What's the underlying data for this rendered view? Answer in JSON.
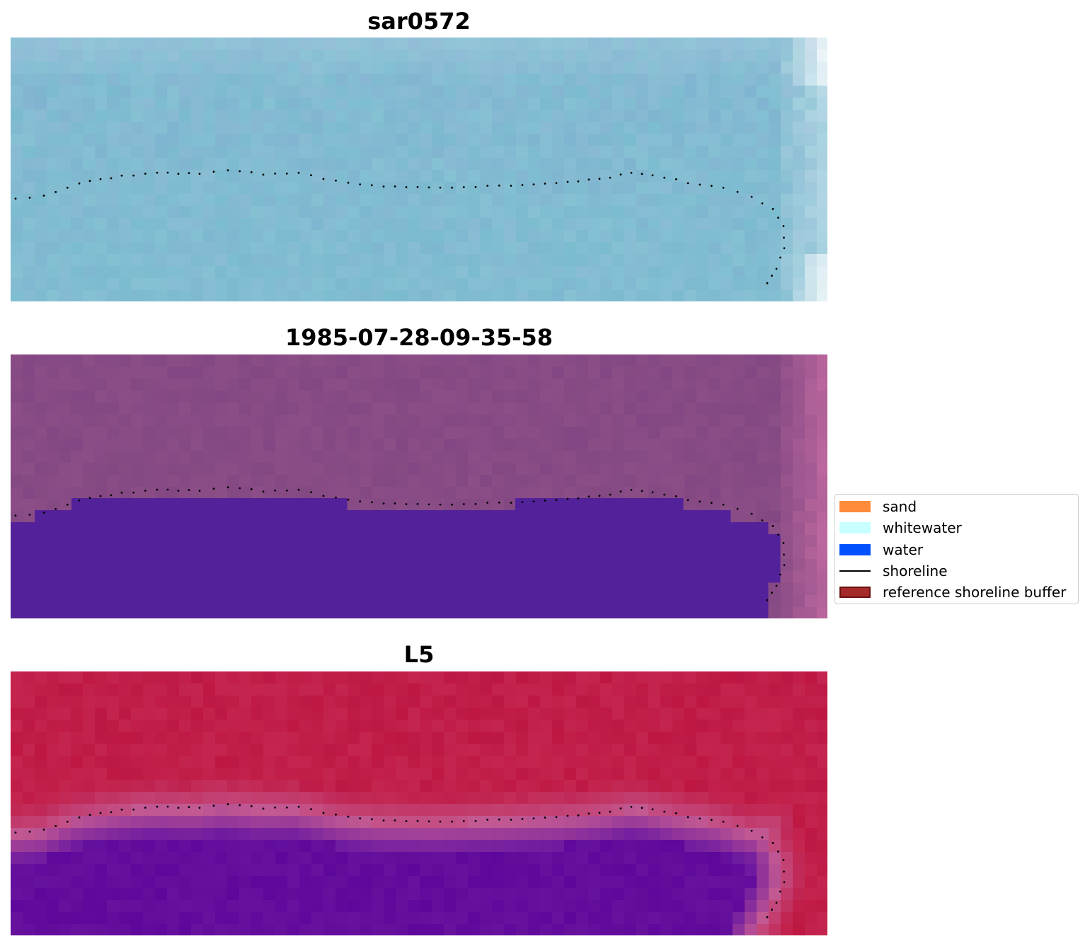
{
  "panels": [
    {
      "title": "sar0572",
      "style": "sar"
    },
    {
      "title": "1985-07-28-09-35-58",
      "style": "classified"
    },
    {
      "title": "L5",
      "style": "ndwi"
    }
  ],
  "legend": {
    "items": [
      {
        "label": "sand",
        "color": "#ff8c3a",
        "kind": "patch"
      },
      {
        "label": "whitewater",
        "color": "#c8ffff",
        "kind": "patch"
      },
      {
        "label": "water",
        "color": "#0050ff",
        "kind": "patch"
      },
      {
        "label": "shoreline",
        "color": "#000000",
        "kind": "line"
      },
      {
        "label": "reference shoreline buffer",
        "color": "#a52a2a",
        "kind": "patch"
      }
    ]
  },
  "colors": {
    "sar_base": "#7bbccf",
    "land_purple": "#8c4e86",
    "water_class": "#53229a",
    "ndwi_land": "#bd1742",
    "ndwi_water": "#5e079b",
    "shoreline": "#000000"
  }
}
